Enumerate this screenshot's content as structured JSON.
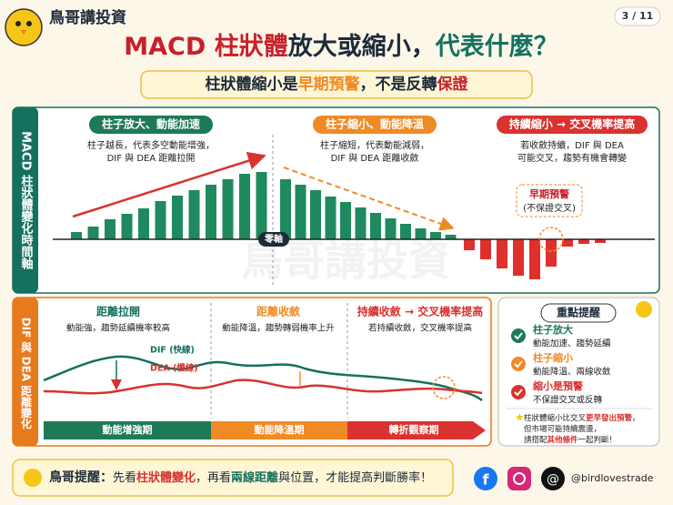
{
  "header": {
    "brand": "鳥哥講投資",
    "page": "3 / 11",
    "title": [
      "MACD 柱狀體",
      "放大或縮小，",
      "代表什麼？"
    ],
    "subtitle": [
      "柱狀體縮小是",
      "早期預警",
      "，不是反轉",
      "保證"
    ]
  },
  "top_panel": {
    "side_label": "MACD 柱狀體變化時間軸",
    "sections": [
      {
        "title": "柱子放大、動能加速",
        "desc": [
          "柱子越長，代表多空動能增強，",
          "DIF 與 DEA 距離拉開"
        ]
      },
      {
        "title": "柱子縮小、動能降溫",
        "desc": [
          "柱子縮短，代表動能減弱，",
          "DIF 與 DEA 距離收斂"
        ]
      },
      {
        "title": "持續縮小 → 交叉機率提高",
        "desc": [
          "若收斂持續，DIF 與 DEA",
          "可能交叉，趨勢有機會轉變"
        ]
      }
    ],
    "zero_label": "零軸",
    "callout": [
      "早期預警",
      "(不保證交叉)"
    ],
    "watermark": "鳥哥講投資"
  },
  "bottom_panel": {
    "side_label": "DIF 與 DEA 距離變化",
    "sections": [
      {
        "title": "距離拉開",
        "desc": "動能強，趨勢延續機率較高"
      },
      {
        "title": "距離收斂",
        "desc": "動能降溫，趨勢轉弱機率上升"
      },
      {
        "title": "持續收斂 → 交叉機率提高",
        "desc": "若持續收斂，交叉機率提高"
      }
    ],
    "dif_label": "DIF (快線)",
    "dea_label": "DEA (慢線)",
    "phases": [
      "動能增強期",
      "動能降溫期",
      "轉折觀察期"
    ]
  },
  "reminder": {
    "title": "重點提醒",
    "items": [
      {
        "title": "柱子放大",
        "desc": "動能加速、趨勢延續"
      },
      {
        "title": "柱子縮小",
        "desc": "動能降溫、兩線收斂"
      },
      {
        "title": "縮小是預警",
        "desc": "不保證交叉或反轉"
      }
    ],
    "note": [
      [
        "柱狀體縮小比交叉",
        "更早發出預警",
        "，"
      ],
      [
        "但市場可能持續震盪，"
      ],
      [
        "請搭配",
        "其他條件",
        "一起判斷！"
      ]
    ]
  },
  "footer": {
    "lead": "鳥哥提醒：",
    "text": [
      "先看",
      "柱狀體變化",
      "，再看",
      "兩線距離",
      "與位置，才能提高判斷勝率！"
    ],
    "handle": "@birdlovestrade"
  }
}
